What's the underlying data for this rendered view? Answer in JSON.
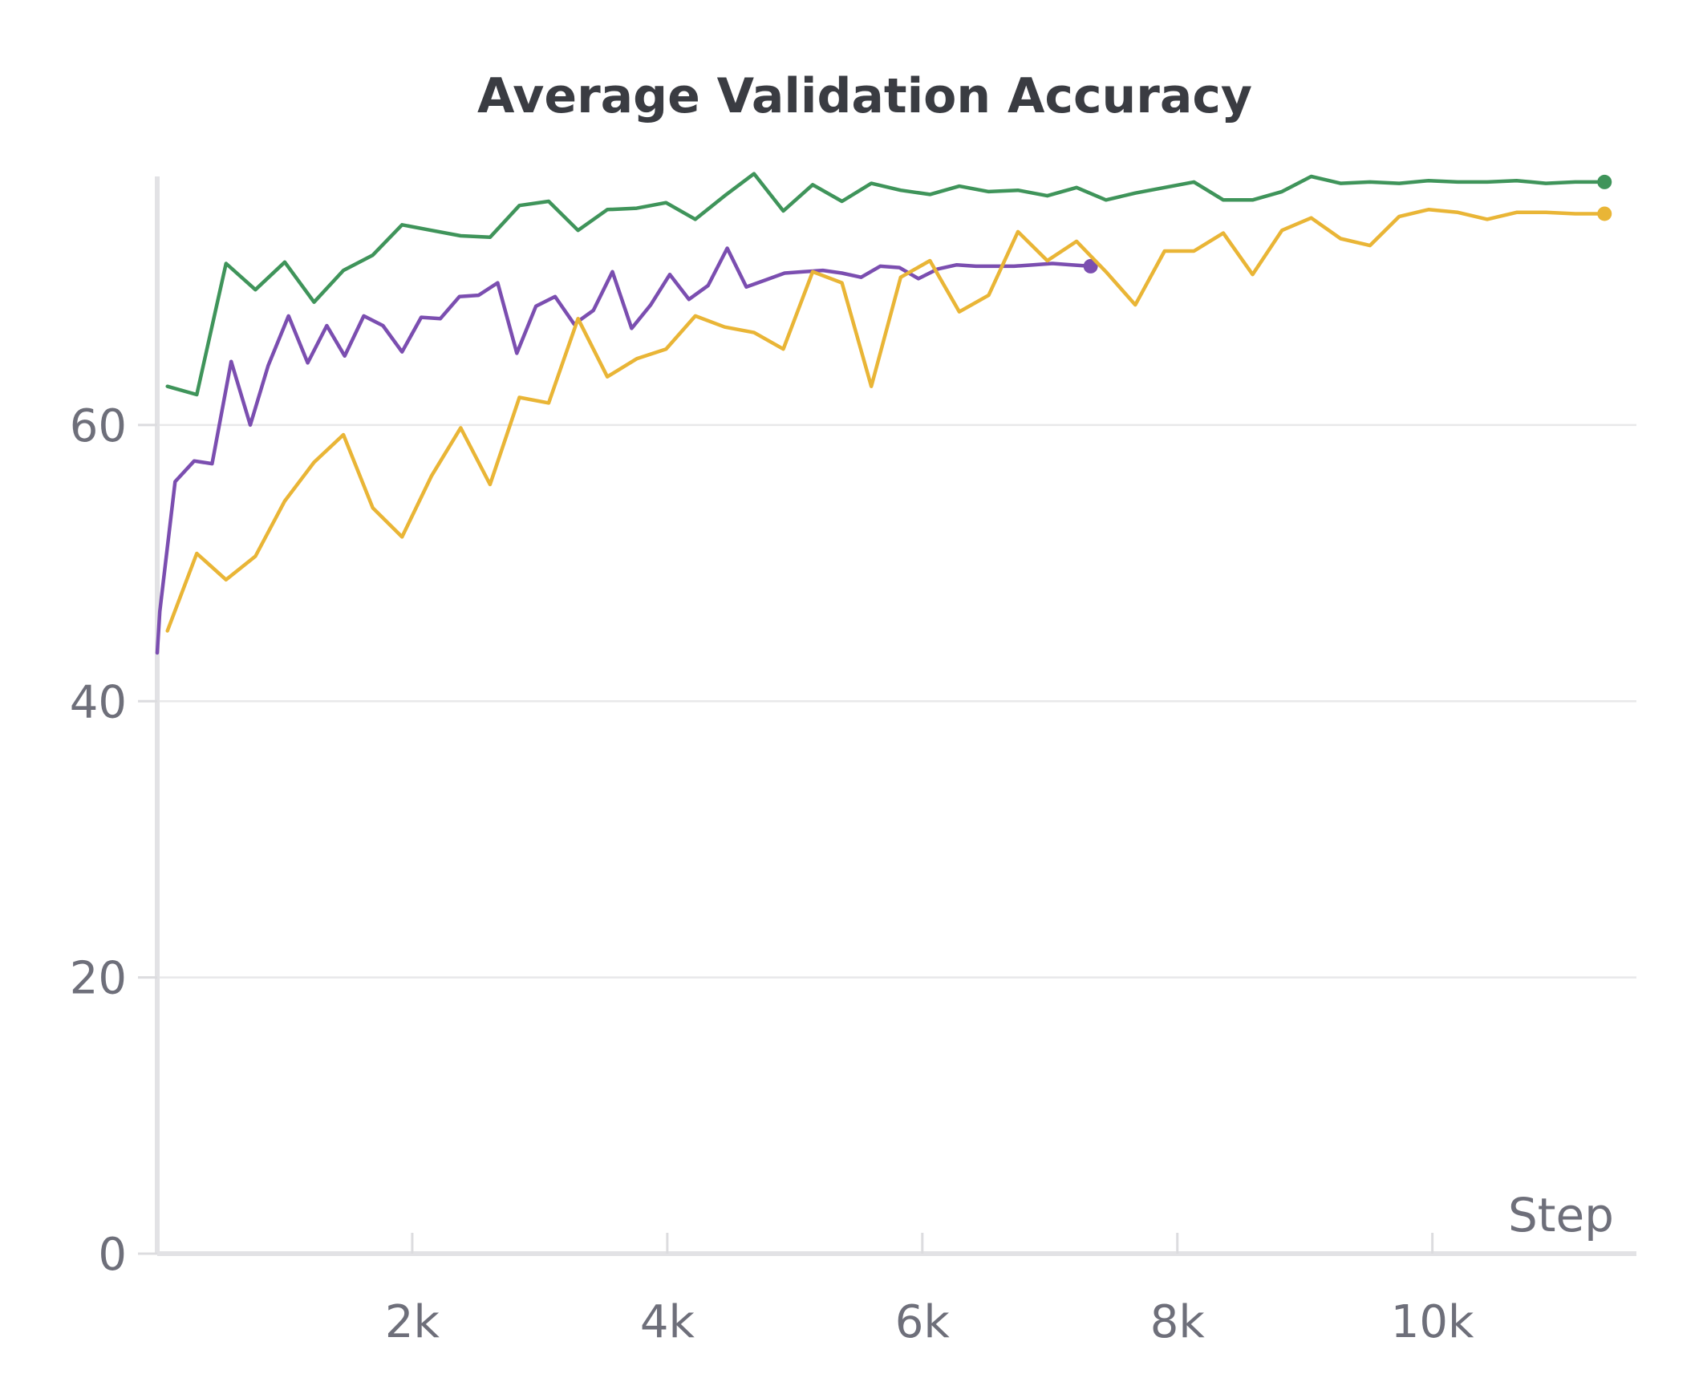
{
  "chart_data": {
    "type": "line",
    "title": "Average Validation Accuracy",
    "xlabel": "Step",
    "ylabel": "",
    "xlim": [
      0,
      11600
    ],
    "ylim": [
      0,
      78
    ],
    "x_ticks": [
      {
        "value": 2000,
        "label": "2k"
      },
      {
        "value": 4000,
        "label": "4k"
      },
      {
        "value": 6000,
        "label": "6k"
      },
      {
        "value": 8000,
        "label": "8k"
      },
      {
        "value": 10000,
        "label": "10k"
      }
    ],
    "y_ticks": [
      {
        "value": 0,
        "label": "0"
      },
      {
        "value": 20,
        "label": "20"
      },
      {
        "value": 40,
        "label": "40"
      },
      {
        "value": 60,
        "label": "60"
      }
    ],
    "grid": true,
    "series": [
      {
        "color": "#3f945a",
        "end_marker": true,
        "points": [
          [
            80,
            62.8
          ],
          [
            310,
            62.2
          ],
          [
            540,
            71.7
          ],
          [
            770,
            69.8
          ],
          [
            1000,
            71.8
          ],
          [
            1230,
            68.9
          ],
          [
            1460,
            71.2
          ],
          [
            1690,
            72.3
          ],
          [
            1920,
            74.5
          ],
          [
            2150,
            74.1
          ],
          [
            2380,
            73.7
          ],
          [
            2610,
            73.6
          ],
          [
            2840,
            75.9
          ],
          [
            3070,
            76.2
          ],
          [
            3300,
            74.1
          ],
          [
            3530,
            75.6
          ],
          [
            3760,
            75.7
          ],
          [
            3990,
            76.1
          ],
          [
            4220,
            74.9
          ],
          [
            4450,
            76.6
          ],
          [
            4680,
            78.2
          ],
          [
            4910,
            75.5
          ],
          [
            5140,
            77.4
          ],
          [
            5370,
            76.2
          ],
          [
            5600,
            77.5
          ],
          [
            5830,
            77.0
          ],
          [
            6060,
            76.7
          ],
          [
            6290,
            77.3
          ],
          [
            6520,
            76.9
          ],
          [
            6750,
            77.0
          ],
          [
            6980,
            76.6
          ],
          [
            7210,
            77.2
          ],
          [
            7440,
            76.3
          ],
          [
            7670,
            76.8
          ],
          [
            7900,
            77.2
          ],
          [
            8130,
            77.6
          ],
          [
            8360,
            76.3
          ],
          [
            8590,
            76.3
          ],
          [
            8820,
            76.9
          ],
          [
            9050,
            78.0
          ],
          [
            9280,
            77.5
          ],
          [
            9510,
            77.6
          ],
          [
            9740,
            77.5
          ],
          [
            9970,
            77.7
          ],
          [
            10200,
            77.6
          ],
          [
            10430,
            77.6
          ],
          [
            10660,
            77.7
          ],
          [
            10890,
            77.5
          ],
          [
            11120,
            77.6
          ],
          [
            11350,
            77.6
          ]
        ]
      },
      {
        "color": "#7b4eb0",
        "end_marker": true,
        "points": [
          [
            0,
            43.5
          ],
          [
            20,
            46.5
          ],
          [
            140,
            55.9
          ],
          [
            290,
            57.4
          ],
          [
            430,
            57.2
          ],
          [
            580,
            64.6
          ],
          [
            730,
            60.0
          ],
          [
            870,
            64.3
          ],
          [
            1030,
            67.9
          ],
          [
            1180,
            64.5
          ],
          [
            1330,
            67.2
          ],
          [
            1470,
            65.0
          ],
          [
            1620,
            67.9
          ],
          [
            1770,
            67.2
          ],
          [
            1920,
            65.3
          ],
          [
            2070,
            67.8
          ],
          [
            2220,
            67.7
          ],
          [
            2370,
            69.3
          ],
          [
            2520,
            69.4
          ],
          [
            2670,
            70.3
          ],
          [
            2820,
            65.2
          ],
          [
            2970,
            68.6
          ],
          [
            3120,
            69.3
          ],
          [
            3270,
            67.3
          ],
          [
            3420,
            68.3
          ],
          [
            3570,
            71.1
          ],
          [
            3720,
            67.0
          ],
          [
            3870,
            68.7
          ],
          [
            4020,
            70.9
          ],
          [
            4170,
            69.1
          ],
          [
            4320,
            70.1
          ],
          [
            4470,
            72.8
          ],
          [
            4620,
            70.0
          ],
          [
            4770,
            70.5
          ],
          [
            4920,
            71.0
          ],
          [
            5070,
            71.1
          ],
          [
            5220,
            71.2
          ],
          [
            5370,
            71.0
          ],
          [
            5520,
            70.7
          ],
          [
            5670,
            71.5
          ],
          [
            5820,
            71.4
          ],
          [
            5970,
            70.6
          ],
          [
            6120,
            71.3
          ],
          [
            6270,
            71.6
          ],
          [
            6420,
            71.5
          ],
          [
            6570,
            71.5
          ],
          [
            6720,
            71.5
          ],
          [
            6870,
            71.6
          ],
          [
            7020,
            71.7
          ],
          [
            7170,
            71.6
          ],
          [
            7320,
            71.5
          ]
        ]
      },
      {
        "color": "#e9b536",
        "end_marker": true,
        "points": [
          [
            80,
            45.1
          ],
          [
            310,
            50.7
          ],
          [
            540,
            48.8
          ],
          [
            770,
            50.5
          ],
          [
            1000,
            54.5
          ],
          [
            1230,
            57.3
          ],
          [
            1460,
            59.3
          ],
          [
            1690,
            54.0
          ],
          [
            1920,
            51.9
          ],
          [
            2150,
            56.3
          ],
          [
            2380,
            59.8
          ],
          [
            2610,
            55.7
          ],
          [
            2840,
            62.0
          ],
          [
            3070,
            61.6
          ],
          [
            3300,
            67.7
          ],
          [
            3530,
            63.5
          ],
          [
            3760,
            64.8
          ],
          [
            3990,
            65.5
          ],
          [
            4220,
            67.9
          ],
          [
            4450,
            67.1
          ],
          [
            4680,
            66.7
          ],
          [
            4910,
            65.5
          ],
          [
            5140,
            71.1
          ],
          [
            5370,
            70.3
          ],
          [
            5600,
            62.8
          ],
          [
            5830,
            70.7
          ],
          [
            6060,
            71.9
          ],
          [
            6290,
            68.2
          ],
          [
            6520,
            69.4
          ],
          [
            6750,
            74.0
          ],
          [
            6980,
            71.9
          ],
          [
            7210,
            73.3
          ],
          [
            7440,
            71.1
          ],
          [
            7670,
            68.7
          ],
          [
            7900,
            72.6
          ],
          [
            8130,
            72.6
          ],
          [
            8360,
            73.9
          ],
          [
            8590,
            70.9
          ],
          [
            8820,
            74.1
          ],
          [
            9050,
            75.0
          ],
          [
            9280,
            73.5
          ],
          [
            9510,
            73.0
          ],
          [
            9740,
            75.1
          ],
          [
            9970,
            75.6
          ],
          [
            10200,
            75.4
          ],
          [
            10430,
            74.9
          ],
          [
            10660,
            75.4
          ],
          [
            10890,
            75.4
          ],
          [
            11120,
            75.3
          ],
          [
            11350,
            75.3
          ]
        ]
      }
    ]
  }
}
